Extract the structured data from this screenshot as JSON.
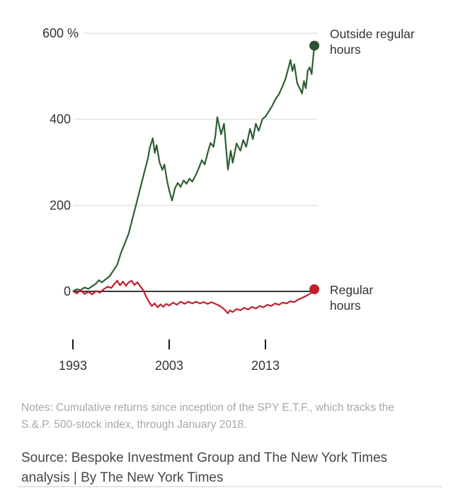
{
  "chart_data": {
    "type": "line",
    "title": "",
    "unit": "%",
    "x_range": [
      1993,
      2018.2
    ],
    "y_range": [
      -60,
      600
    ],
    "x_ticks": [
      1993,
      2003,
      2013
    ],
    "y_ticks": [
      {
        "value": 600,
        "label": "600 %"
      },
      {
        "value": 400,
        "label": "400"
      },
      {
        "value": 200,
        "label": "200"
      },
      {
        "value": 0,
        "label": "0"
      }
    ],
    "grid": "horizontal-light",
    "legend_position": "right-of-line-ends",
    "baseline": {
      "value": 0,
      "color": "#1a1a1a"
    },
    "series": [
      {
        "name": "Outside regular hours",
        "color": "#2e5f33",
        "dot_color": "#2a5430",
        "end_dot": true,
        "points": [
          [
            1993.05,
            1
          ],
          [
            1993.4,
            5
          ],
          [
            1993.8,
            3
          ],
          [
            1994.2,
            9
          ],
          [
            1994.6,
            6
          ],
          [
            1995.0,
            12
          ],
          [
            1995.4,
            18
          ],
          [
            1995.7,
            26
          ],
          [
            1996.0,
            21
          ],
          [
            1996.4,
            28
          ],
          [
            1996.8,
            35
          ],
          [
            1997.2,
            48
          ],
          [
            1997.6,
            62
          ],
          [
            1998.0,
            90
          ],
          [
            1998.4,
            112
          ],
          [
            1998.8,
            135
          ],
          [
            1999.2,
            170
          ],
          [
            1999.6,
            205
          ],
          [
            2000.0,
            240
          ],
          [
            2000.4,
            275
          ],
          [
            2000.8,
            310
          ],
          [
            2001.0,
            335
          ],
          [
            2001.3,
            356
          ],
          [
            2001.5,
            322
          ],
          [
            2001.7,
            340
          ],
          [
            2002.0,
            300
          ],
          [
            2002.3,
            282
          ],
          [
            2002.5,
            295
          ],
          [
            2002.8,
            255
          ],
          [
            2003.0,
            235
          ],
          [
            2003.3,
            211
          ],
          [
            2003.6,
            240
          ],
          [
            2003.9,
            252
          ],
          [
            2004.2,
            243
          ],
          [
            2004.5,
            258
          ],
          [
            2004.8,
            250
          ],
          [
            2005.1,
            262
          ],
          [
            2005.4,
            255
          ],
          [
            2005.8,
            272
          ],
          [
            2006.1,
            288
          ],
          [
            2006.4,
            305
          ],
          [
            2006.7,
            295
          ],
          [
            2007.0,
            322
          ],
          [
            2007.3,
            345
          ],
          [
            2007.6,
            336
          ],
          [
            2007.8,
            362
          ],
          [
            2008.0,
            405
          ],
          [
            2008.4,
            365
          ],
          [
            2008.7,
            390
          ],
          [
            2009.1,
            283
          ],
          [
            2009.4,
            327
          ],
          [
            2009.6,
            299
          ],
          [
            2010.0,
            344
          ],
          [
            2010.4,
            327
          ],
          [
            2010.7,
            352
          ],
          [
            2011.0,
            336
          ],
          [
            2011.4,
            378
          ],
          [
            2011.7,
            354
          ],
          [
            2012.0,
            390
          ],
          [
            2012.3,
            373
          ],
          [
            2012.7,
            401
          ],
          [
            2013.0,
            406
          ],
          [
            2013.4,
            420
          ],
          [
            2013.7,
            431
          ],
          [
            2014.0,
            445
          ],
          [
            2014.4,
            458
          ],
          [
            2014.8,
            478
          ],
          [
            2015.1,
            495
          ],
          [
            2015.4,
            520
          ],
          [
            2015.6,
            538
          ],
          [
            2015.8,
            512
          ],
          [
            2016.0,
            528
          ],
          [
            2016.3,
            484
          ],
          [
            2016.6,
            470
          ],
          [
            2016.8,
            460
          ],
          [
            2017.0,
            489
          ],
          [
            2017.2,
            472
          ],
          [
            2017.4,
            513
          ],
          [
            2017.6,
            521
          ],
          [
            2017.8,
            505
          ],
          [
            2017.95,
            540
          ],
          [
            2018.08,
            571
          ]
        ]
      },
      {
        "name": "Regular hours",
        "color": "#c01f2f",
        "dot_color": "#c01f2f",
        "end_dot": true,
        "points": [
          [
            1993.05,
            0
          ],
          [
            1993.4,
            -5
          ],
          [
            1993.8,
            3
          ],
          [
            1994.2,
            -6
          ],
          [
            1994.6,
            -1
          ],
          [
            1995.0,
            -7
          ],
          [
            1995.4,
            1
          ],
          [
            1995.8,
            -3
          ],
          [
            1996.2,
            5
          ],
          [
            1996.6,
            11
          ],
          [
            1997.0,
            8
          ],
          [
            1997.3,
            17
          ],
          [
            1997.6,
            25
          ],
          [
            1997.9,
            14
          ],
          [
            1998.2,
            23
          ],
          [
            1998.5,
            13
          ],
          [
            1998.8,
            21
          ],
          [
            1999.1,
            25
          ],
          [
            1999.4,
            15
          ],
          [
            1999.7,
            21
          ],
          [
            2000.0,
            12
          ],
          [
            2000.3,
            3
          ],
          [
            2000.6,
            -12
          ],
          [
            2000.9,
            -24
          ],
          [
            2001.2,
            -34
          ],
          [
            2001.5,
            -28
          ],
          [
            2001.8,
            -37
          ],
          [
            2002.1,
            -30
          ],
          [
            2002.4,
            -36
          ],
          [
            2002.7,
            -29
          ],
          [
            2003.0,
            -33
          ],
          [
            2003.4,
            -26
          ],
          [
            2003.8,
            -31
          ],
          [
            2004.2,
            -24
          ],
          [
            2004.6,
            -29
          ],
          [
            2005.0,
            -24
          ],
          [
            2005.4,
            -28
          ],
          [
            2005.8,
            -24
          ],
          [
            2006.2,
            -28
          ],
          [
            2006.6,
            -25
          ],
          [
            2007.0,
            -29
          ],
          [
            2007.4,
            -25
          ],
          [
            2007.8,
            -29
          ],
          [
            2008.2,
            -33
          ],
          [
            2008.6,
            -39
          ],
          [
            2008.9,
            -46
          ],
          [
            2009.1,
            -51
          ],
          [
            2009.3,
            -44
          ],
          [
            2009.6,
            -48
          ],
          [
            2010.0,
            -41
          ],
          [
            2010.4,
            -44
          ],
          [
            2010.8,
            -38
          ],
          [
            2011.2,
            -42
          ],
          [
            2011.6,
            -36
          ],
          [
            2012.0,
            -40
          ],
          [
            2012.4,
            -34
          ],
          [
            2012.8,
            -37
          ],
          [
            2013.2,
            -31
          ],
          [
            2013.6,
            -34
          ],
          [
            2014.0,
            -28
          ],
          [
            2014.4,
            -31
          ],
          [
            2014.8,
            -26
          ],
          [
            2015.2,
            -28
          ],
          [
            2015.6,
            -23
          ],
          [
            2016.0,
            -25
          ],
          [
            2016.4,
            -19
          ],
          [
            2016.8,
            -15
          ],
          [
            2017.2,
            -11
          ],
          [
            2017.6,
            -6
          ],
          [
            2017.9,
            -1
          ],
          [
            2018.08,
            5
          ]
        ]
      }
    ]
  },
  "footer": {
    "notes": "Notes: Cumulative returns since inception of the SPY E.T.F., which tracks the S.&.P. 500-stock index, through January 2018.",
    "source": "Source: Bespoke Investment Group and The New York Times analysis | By The New York Times"
  },
  "colors": {
    "grid": "#e4e4e4",
    "axis_text": "#333333",
    "tick": "#1a1a1a",
    "notes_text": "#aba7a5",
    "source_text": "#464646"
  }
}
